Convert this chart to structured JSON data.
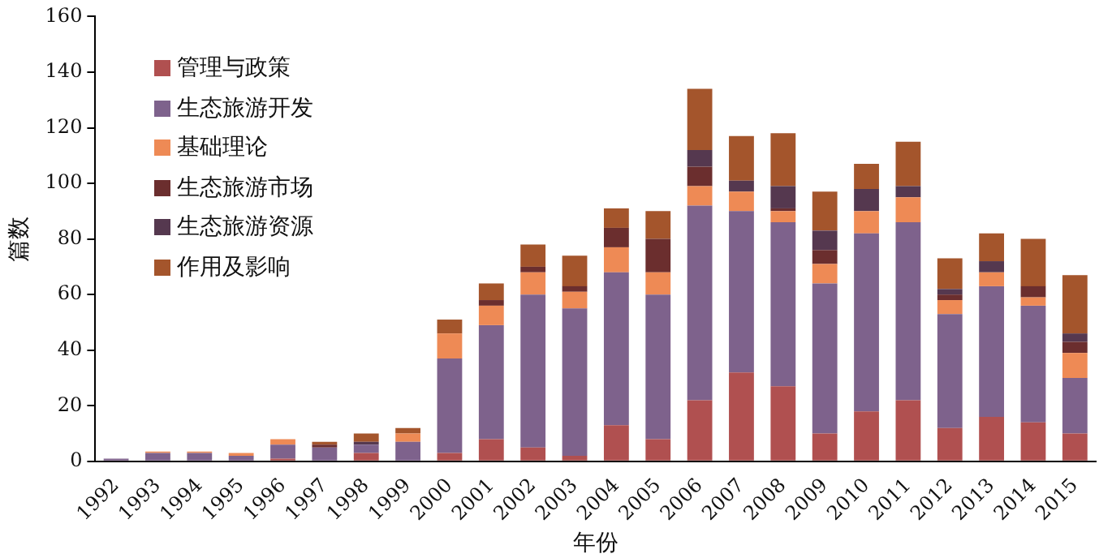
{
  "chart_data": {
    "type": "bar",
    "stacked": true,
    "xlabel": "年份",
    "ylabel": "篇数",
    "categories": [
      "1992",
      "1993",
      "1994",
      "1995",
      "1996",
      "1997",
      "1998",
      "1999",
      "2000",
      "2001",
      "2002",
      "2003",
      "2004",
      "2005",
      "2006",
      "2007",
      "2008",
      "2009",
      "2010",
      "2011",
      "2012",
      "2013",
      "2014",
      "2015"
    ],
    "series": [
      {
        "name": "管理与政策",
        "color": "#b05050",
        "values": [
          0,
          0,
          0,
          0,
          1,
          0,
          3,
          0,
          3,
          8,
          5,
          2,
          13,
          8,
          22,
          32,
          27,
          10,
          18,
          22,
          12,
          16,
          14,
          10
        ]
      },
      {
        "name": "生态旅游开发",
        "color": "#7e628c",
        "values": [
          1,
          3,
          3,
          2,
          5,
          5,
          3,
          7,
          34,
          41,
          55,
          53,
          55,
          52,
          70,
          58,
          59,
          54,
          64,
          64,
          41,
          47,
          42,
          20
        ]
      },
      {
        "name": "基础理论",
        "color": "#ee8a55",
        "values": [
          0,
          0.5,
          0.5,
          1,
          2,
          0,
          0,
          3,
          9,
          7,
          8,
          6,
          9,
          8,
          7,
          7,
          4,
          7,
          8,
          9,
          5,
          5,
          3,
          9
        ]
      },
      {
        "name": "生态旅游市场",
        "color": "#6b2e2e",
        "values": [
          0,
          0,
          0,
          0,
          0,
          1,
          0,
          0,
          0,
          2,
          2,
          2,
          7,
          12,
          7,
          0,
          1,
          5,
          0,
          0,
          2,
          0,
          4,
          4
        ]
      },
      {
        "name": "生态旅游资源",
        "color": "#55384f",
        "values": [
          0,
          0,
          0,
          0,
          0,
          0,
          1,
          0,
          0,
          0,
          0,
          0,
          0,
          0,
          6,
          4,
          8,
          7,
          8,
          4,
          2,
          4,
          0,
          3
        ]
      },
      {
        "name": "作用及影响",
        "color": "#a4552c",
        "values": [
          0,
          0,
          0,
          0,
          0,
          1,
          3,
          2,
          5,
          6,
          8,
          11,
          7,
          10,
          22,
          16,
          19,
          14,
          9,
          16,
          11,
          10,
          17,
          21
        ]
      }
    ],
    "ylim": [
      0,
      160
    ],
    "yticks": [
      0,
      20,
      40,
      60,
      80,
      100,
      120,
      140,
      160
    ],
    "grid": false,
    "legend": "top left"
  }
}
